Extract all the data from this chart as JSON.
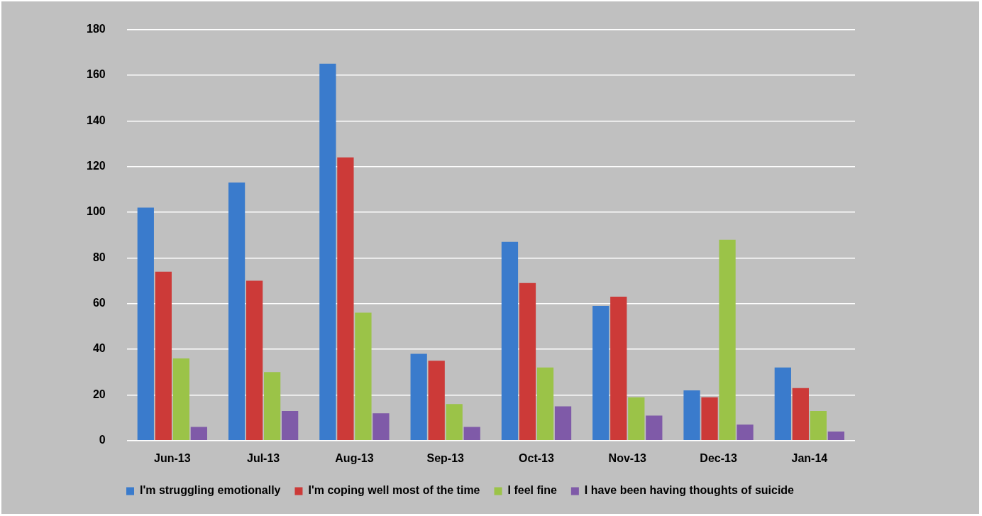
{
  "chart_data": {
    "type": "bar",
    "categories": [
      "Jun-13",
      "Jul-13",
      "Aug-13",
      "Sep-13",
      "Oct-13",
      "Nov-13",
      "Dec-13",
      "Jan-14"
    ],
    "series": [
      {
        "name": "I'm struggling emotionally",
        "color": "#3a7bcc",
        "values": [
          102,
          113,
          165,
          38,
          87,
          59,
          22,
          32
        ]
      },
      {
        "name": "I'm coping well most of the time",
        "color": "#cc3a38",
        "values": [
          74,
          70,
          124,
          35,
          69,
          63,
          19,
          23
        ]
      },
      {
        "name": "I feel fine",
        "color": "#9bc348",
        "values": [
          36,
          30,
          56,
          16,
          32,
          19,
          88,
          13
        ]
      },
      {
        "name": "I have been having thoughts of suicide",
        "color": "#7f5aa8",
        "values": [
          6,
          13,
          12,
          6,
          15,
          11,
          7,
          4
        ]
      }
    ],
    "ylim": [
      0,
      180
    ],
    "yticks": [
      0,
      20,
      40,
      60,
      80,
      100,
      120,
      140,
      160,
      180
    ],
    "grid": "y",
    "legend": "bottom"
  }
}
